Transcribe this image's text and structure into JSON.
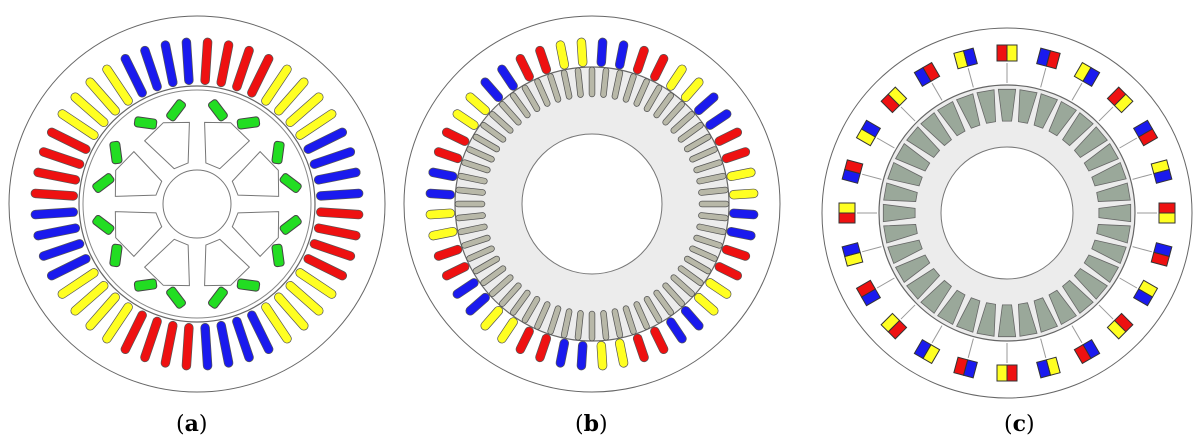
{
  "figure": {
    "panels": [
      {
        "id": "a",
        "label": "a",
        "description_key": "induction-motor-with-rotor-bars"
      },
      {
        "id": "b",
        "label": "b",
        "description_key": "stator-with-rotor-teeth"
      },
      {
        "id": "c",
        "label": "c",
        "description_key": "concentrated-winding-machine"
      }
    ],
    "colors": {
      "phase_red": "#ee1111",
      "phase_blue": "#1a1aee",
      "phase_yellow": "#ffff22",
      "magnet_green": "#22dd22",
      "rotor_tooth": "#9aa89a",
      "rotor_fill": "#ececec",
      "outline": "#666666"
    }
  }
}
